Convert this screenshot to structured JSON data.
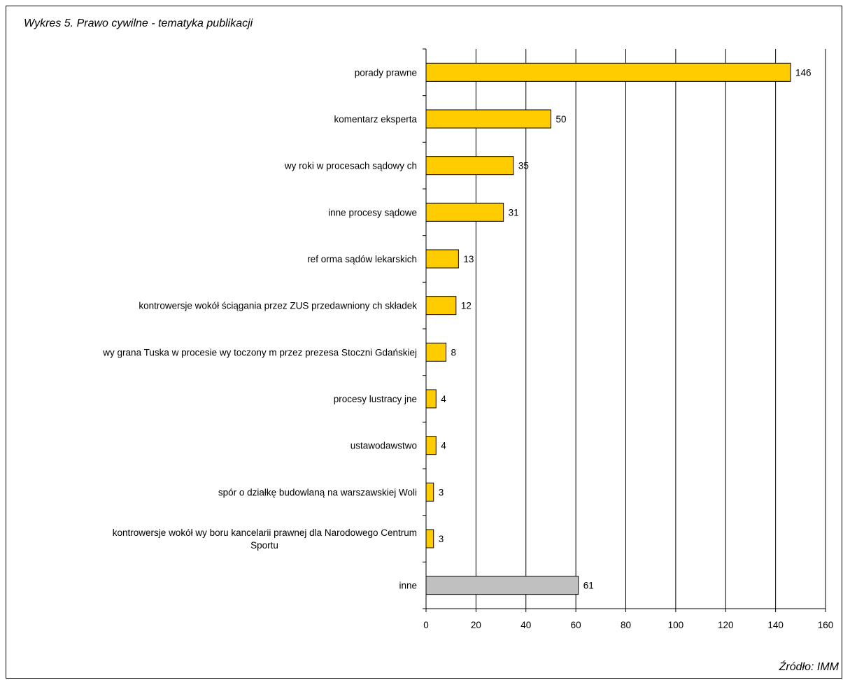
{
  "title": "Wykres 5. Prawo cywilne - tematyka publikacji",
  "source": "Źródło: IMM",
  "colors": {
    "bar": "#FFCC00",
    "bar_other": "#C0C0C0",
    "border": "#000000"
  },
  "chart_data": {
    "type": "bar",
    "orientation": "horizontal",
    "categories": [
      "porady  prawne",
      "komentarz eksperta",
      "wy roki w procesach sądowy ch",
      "inne procesy  sądowe",
      "ref orma sądów lekarskich",
      "kontrowersje wokół ściągania przez ZUS przedawniony ch składek",
      "wy grana Tuska w procesie wy toczony m przez prezesa Stoczni Gdańskiej",
      "procesy  lustracy jne",
      "ustawodawstwo",
      "spór o działkę budowlaną na warszawskiej Woli",
      "kontrowersje wokół wy boru kancelarii prawnej dla Narodowego Centrum|Sportu",
      "inne"
    ],
    "values": [
      146,
      50,
      35,
      31,
      13,
      12,
      8,
      4,
      4,
      3,
      3,
      61
    ],
    "xlim": [
      0,
      160
    ],
    "xticks": [
      "0",
      "20",
      "40",
      "60",
      "80",
      "100",
      "120",
      "140",
      "160"
    ],
    "grid": true,
    "legend": "none"
  }
}
